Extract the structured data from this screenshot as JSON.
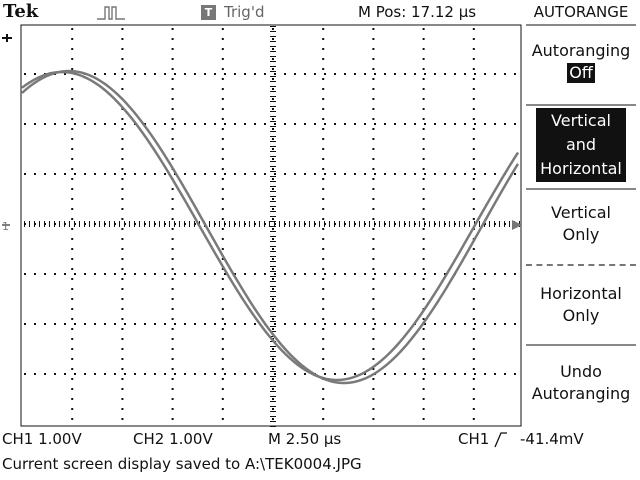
{
  "header": {
    "brand": "Tek",
    "trigger_badge": "T",
    "trigger_status": "Trig'd",
    "horizontal_position": "M Pos: 17.12 µs"
  },
  "menu": {
    "title": "AUTORANGE",
    "autoranging_label": "Autoranging",
    "autoranging_value": "Off",
    "items": [
      {
        "line1": "Vertical",
        "line2": "and",
        "line3": "Horizontal"
      },
      {
        "line1": "Vertical",
        "line2": "Only"
      },
      {
        "line1": "Horizontal",
        "line2": "Only"
      },
      {
        "line1": "Undo",
        "line2": "Autoranging"
      }
    ]
  },
  "status": {
    "ch1_scale": "CH1  1.00V",
    "ch2_scale": "CH2  1.00V",
    "timebase": "M 2.50 µs",
    "trigger_source": "CH1",
    "trigger_slope_icon": "rising-edge-icon",
    "trigger_level": "-41.4mV"
  },
  "message": "Current screen display saved to A:\\TEK0004.JPG",
  "screen": {
    "ground_marker": "1",
    "trace_color": "#7a7a7a",
    "grid_color": "#111111",
    "divisions_x": 10,
    "divisions_y": 8
  }
}
